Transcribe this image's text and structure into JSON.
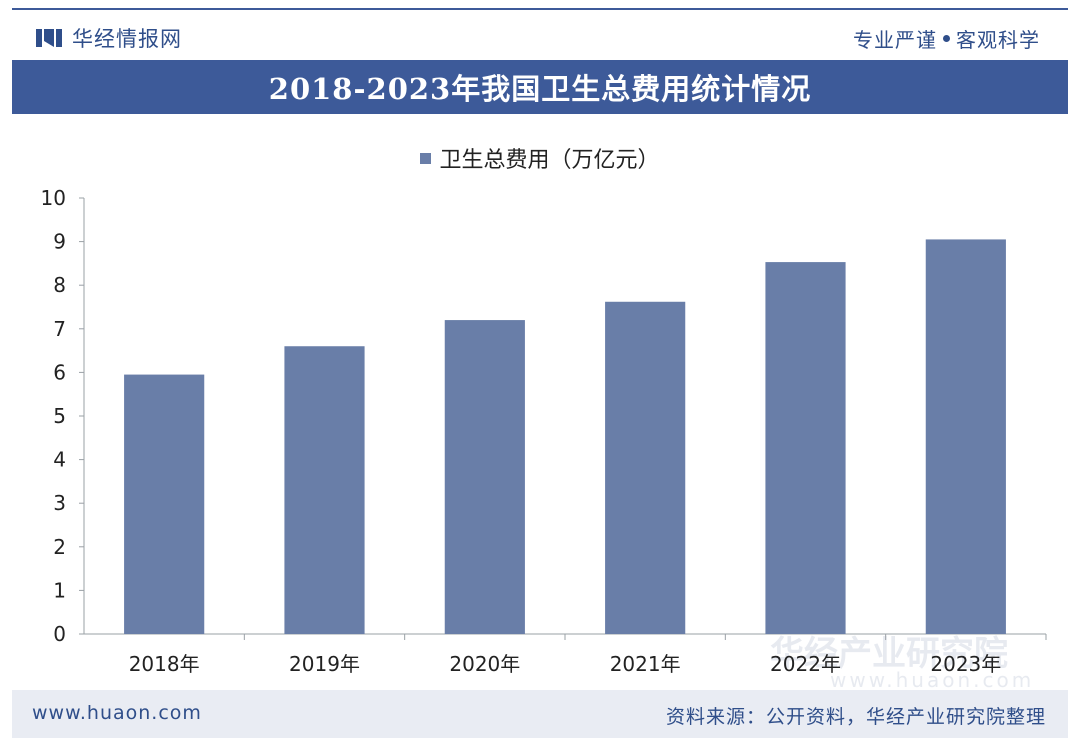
{
  "header": {
    "brand_name": "华经情报网",
    "slogan_left": "专业严谨",
    "slogan_right": "客观科学"
  },
  "title": "2018-2023年我国卫生总费用统计情况",
  "footer": {
    "site": "www.huaon.com",
    "source": "资料来源：公开资料，华经产业研究院整理"
  },
  "watermark": {
    "text": "华经产业研究院",
    "url": "www.huaon.com"
  },
  "colors": {
    "brand": "#3d5a99",
    "bar": "#697ea8",
    "footer_bg": "#e9ecf3"
  },
  "chart_data": {
    "type": "bar",
    "categories": [
      "2018年",
      "2019年",
      "2020年",
      "2021年",
      "2022年",
      "2023年"
    ],
    "series": [
      {
        "name": "卫生总费用（万亿元）",
        "values": [
          5.95,
          6.6,
          7.2,
          7.62,
          8.53,
          9.05
        ]
      }
    ],
    "yticks": [
      "0",
      "1",
      "2",
      "3",
      "4",
      "5",
      "6",
      "7",
      "8",
      "9",
      "10"
    ],
    "ylim": [
      0,
      10
    ],
    "grid": false,
    "legend_position": "top-center"
  }
}
